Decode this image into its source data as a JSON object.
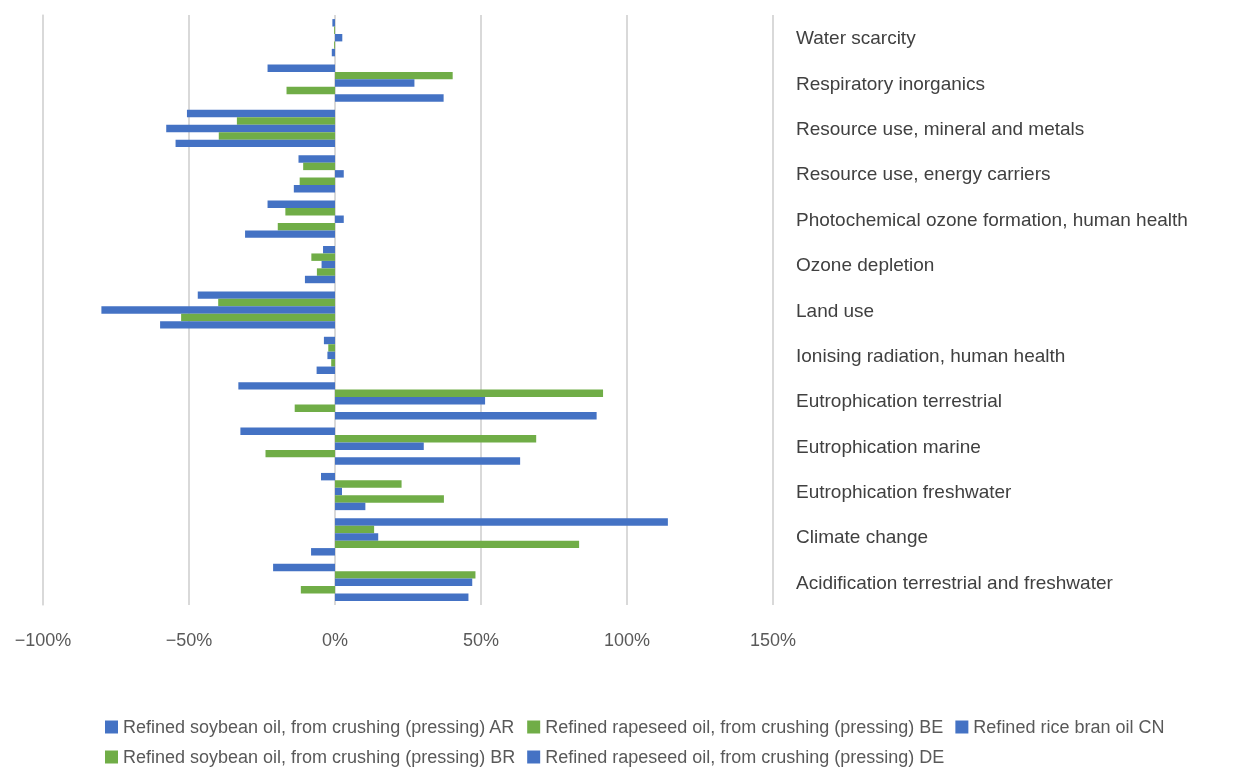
{
  "chart_data": {
    "type": "bar",
    "orientation": "horizontal",
    "categories": [
      "Water scarcity",
      "Respiratory inorganics",
      "Resource use, mineral and metals",
      "Resource use, energy carriers",
      "Photochemical ozone formation, human health",
      "Ozone depletion",
      "Land use",
      "Ionising radiation, human health",
      "Eutrophication terrestrial",
      "Eutrophication marine",
      "Eutrophication freshwater",
      "Climate change",
      "Acidification terrestrial and freshwater"
    ],
    "series": [
      {
        "name": "Refined soybean oil, from crushing (pressing) AR",
        "color": "#4472c4",
        "values": [
          -0.9,
          -23.1,
          -50.7,
          -12.5,
          -23.1,
          -4.1,
          -47.0,
          -3.8,
          -33.1,
          -32.4,
          -4.8,
          114.0,
          -21.2
        ]
      },
      {
        "name": "Refined rapeseed oil, from crushing (pressing) BE",
        "color": "#70ad47",
        "values": [
          -0.3,
          40.3,
          -33.6,
          -10.9,
          -17.0,
          -8.1,
          -40.0,
          -2.3,
          91.8,
          68.9,
          22.8,
          13.4,
          48.1
        ]
      },
      {
        "name": "Refined rice bran oil CN",
        "color": "#4472c4",
        "values": [
          2.5,
          27.2,
          -57.8,
          3.0,
          3.0,
          -4.6,
          -80.0,
          -2.6,
          51.4,
          30.4,
          2.4,
          14.8,
          47.0
        ]
      },
      {
        "name": "Refined soybean oil, from crushing (pressing) BR",
        "color": "#70ad47",
        "values": [
          -0.3,
          -16.6,
          -39.8,
          -12.1,
          -19.6,
          -6.2,
          -52.7,
          -1.3,
          -13.8,
          -23.8,
          37.3,
          83.6,
          -11.7
        ]
      },
      {
        "name": "Refined rapeseed oil, from crushing (pressing) DE",
        "color": "#4472c4",
        "values": [
          -1.1,
          37.2,
          -54.6,
          -14.1,
          -30.8,
          -10.3,
          -59.9,
          -6.3,
          89.6,
          63.4,
          10.4,
          -8.2,
          45.7
        ]
      }
    ],
    "xlim": [
      -100,
      150
    ],
    "xticks": [
      {
        "value": -100,
        "label": "−100%"
      },
      {
        "value": -50,
        "label": "−50%"
      },
      {
        "value": 0,
        "label": "0%"
      },
      {
        "value": 50,
        "label": "50%"
      },
      {
        "value": 100,
        "label": "100%"
      },
      {
        "value": 150,
        "label": "150%"
      }
    ],
    "grid": "x",
    "legend": "bottom"
  }
}
